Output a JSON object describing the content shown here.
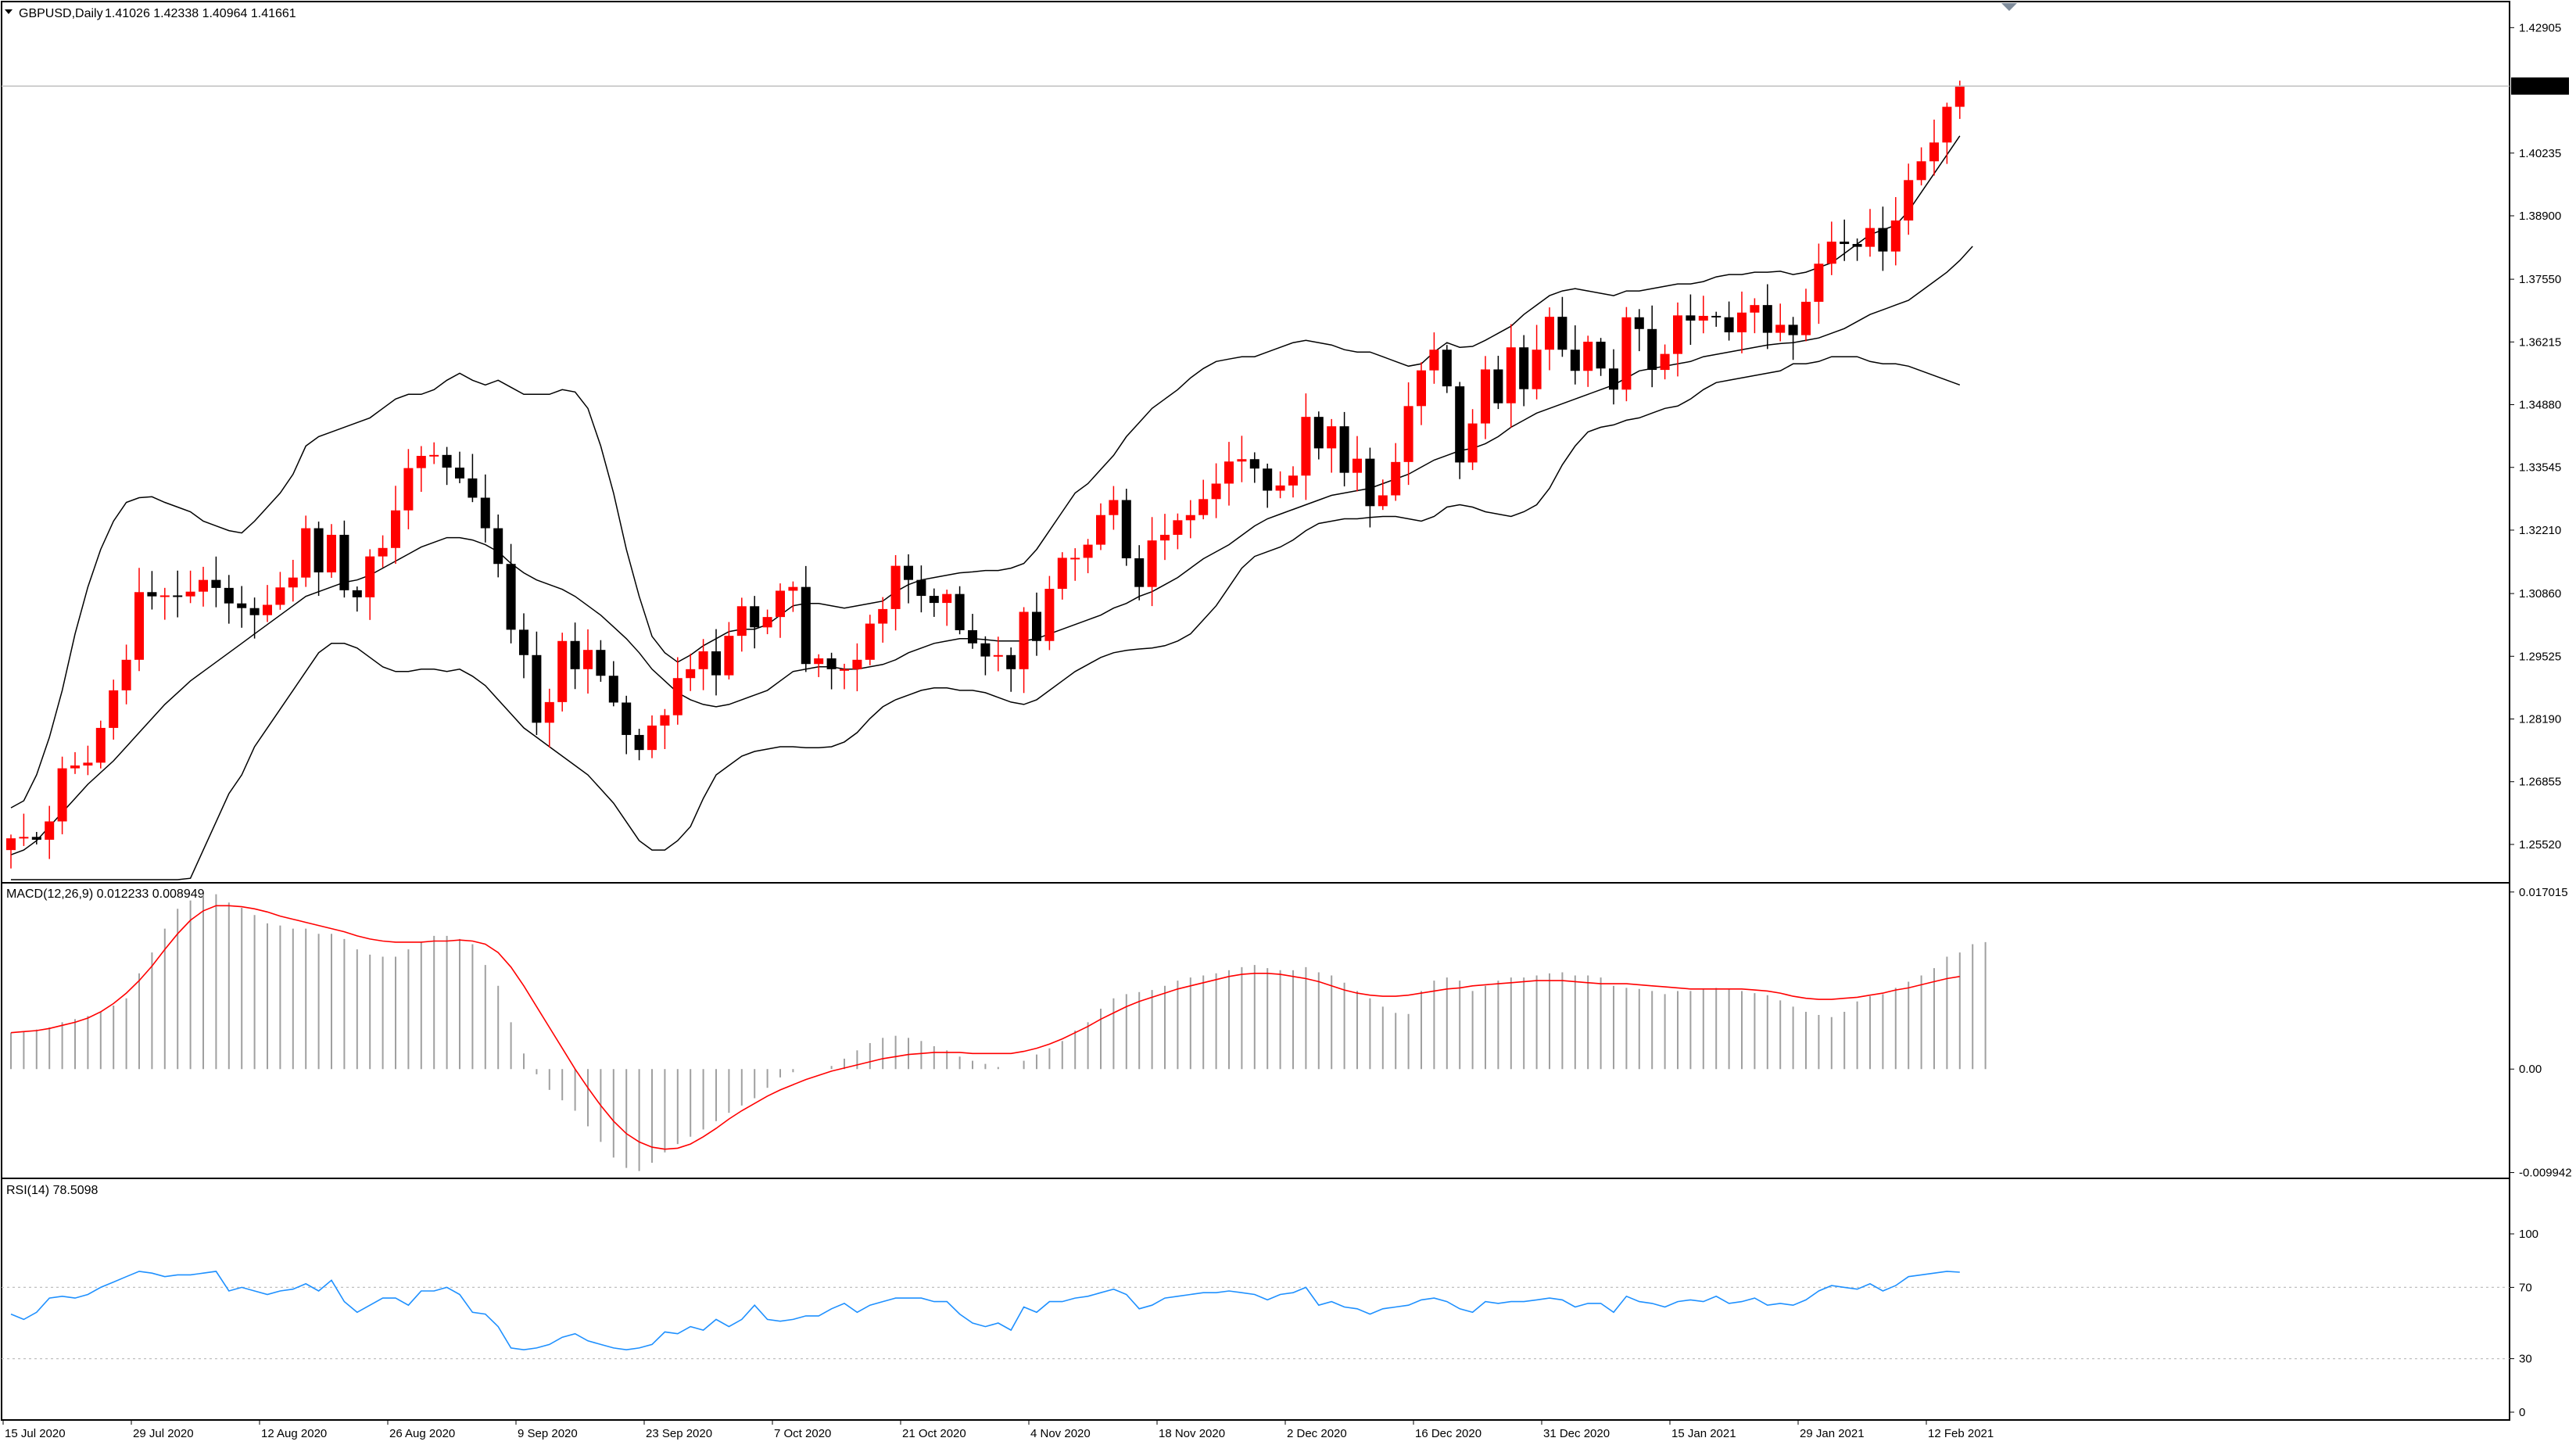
{
  "symbol_caption": "GBPUSD,Daily",
  "ohlc_caption": "1.41026 1.42338 1.40964 1.41661",
  "macd_caption": "MACD(12,26,9) 0.012233 0.008949",
  "rsi_caption": "RSI(14) 78.5098",
  "current_price_label": "1.41661",
  "colors": {
    "bull": "#ff0000",
    "bear": "#000000",
    "grid": "#c0c0c0",
    "macd_signal": "#ff0000",
    "macd_hist": "#a0a0a0",
    "rsi": "#1e90ff",
    "bands": "#000000"
  },
  "icons": {
    "collapse": "triangle-down-icon",
    "shift": "chart-shift-icon"
  },
  "chart_data": [
    {
      "type": "candlestick",
      "y_ticks": [
        "1.42905",
        "1.40235",
        "1.38900",
        "1.37550",
        "1.36215",
        "1.34880",
        "1.33545",
        "1.32210",
        "1.30860",
        "1.29525",
        "1.28190",
        "1.26855",
        "1.25520"
      ],
      "y_range": [
        1.2477,
        1.4336
      ],
      "x_tick_labels": [
        "15 Jul 2020",
        "29 Jul 2020",
        "12 Aug 2020",
        "26 Aug 2020",
        "9 Sep 2020",
        "23 Sep 2020",
        "7 Oct 2020",
        "21 Oct 2020",
        "4 Nov 2020",
        "18 Nov 2020",
        "2 Dec 2020",
        "16 Dec 2020",
        "31 Dec 2020",
        "15 Jan 2021",
        "29 Jan 2021",
        "12 Feb 2021"
      ],
      "x_tick_index": [
        0,
        10,
        20,
        30,
        40,
        50,
        60,
        70,
        80,
        90,
        100,
        110,
        120,
        130,
        140,
        150
      ],
      "current_price": 1.41661,
      "close": [
        1.2565,
        1.2568,
        1.2562,
        1.2601,
        1.2714,
        1.272,
        1.2726,
        1.28,
        1.288,
        1.2945,
        1.3089,
        1.308,
        1.3082,
        1.308,
        1.309,
        1.3115,
        1.3098,
        1.3065,
        1.3055,
        1.304,
        1.3062,
        1.3099,
        1.312,
        1.3225,
        1.3131,
        1.3211,
        1.3093,
        1.3078,
        1.3165,
        1.3183,
        1.3263,
        1.3353,
        1.3379,
        1.3381,
        1.3354,
        1.3331,
        1.329,
        1.3225,
        1.3149,
        1.3009,
        1.2955,
        1.2811,
        1.2855,
        1.2985,
        1.2925,
        1.2966,
        1.2911,
        1.2854,
        1.2785,
        1.2753,
        1.2805,
        1.2827,
        1.2906,
        1.2925,
        1.2963,
        1.2912,
        1.2996,
        1.3059,
        1.3014,
        1.3036,
        1.3092,
        1.31,
        1.2936,
        1.2948,
        1.2925,
        1.2925,
        1.2945,
        1.3022,
        1.3053,
        1.3145,
        1.3115,
        1.3081,
        1.3066,
        1.3085,
        1.3008,
        1.298,
        1.2952,
        1.2955,
        1.2925,
        1.3047,
        1.2985,
        1.3096,
        1.3162,
        1.3162,
        1.319,
        1.3253,
        1.3285,
        1.3161,
        1.31,
        1.3199,
        1.3211,
        1.3242,
        1.3253,
        1.3287,
        1.332,
        1.3367,
        1.3372,
        1.3352,
        1.3305,
        1.3316,
        1.3337,
        1.3462,
        1.3395,
        1.3442,
        1.3343,
        1.3373,
        1.3272,
        1.3295,
        1.3366,
        1.3485,
        1.3561,
        1.3605,
        1.3527,
        1.3365,
        1.3448,
        1.3563,
        1.3491,
        1.361,
        1.3521,
        1.3605,
        1.3675,
        1.3605,
        1.356,
        1.3622,
        1.3565,
        1.352,
        1.3674,
        1.3649,
        1.3562,
        1.3596,
        1.3678,
        1.3667,
        1.3677,
        1.3674,
        1.3642,
        1.3684,
        1.37,
        1.3641,
        1.3658,
        1.3636,
        1.3707,
        1.3788,
        1.3835,
        1.383,
        1.3824,
        1.3864,
        1.3814,
        1.388,
        1.3966,
        1.4006,
        1.4046,
        1.4122,
        1.4166
      ],
      "bb_upper": [
        1.263,
        1.2645,
        1.27,
        1.278,
        1.288,
        1.3,
        1.31,
        1.318,
        1.324,
        1.328,
        1.329,
        1.3292,
        1.328,
        1.327,
        1.326,
        1.324,
        1.323,
        1.322,
        1.3215,
        1.324,
        1.327,
        1.33,
        1.334,
        1.34,
        1.342,
        1.343,
        1.344,
        1.345,
        1.346,
        1.348,
        1.35,
        1.351,
        1.351,
        1.352,
        1.354,
        1.3555,
        1.354,
        1.353,
        1.354,
        1.3525,
        1.351,
        1.351,
        1.351,
        1.352,
        1.3515,
        1.348,
        1.34,
        1.33,
        1.318,
        1.308,
        1.2995,
        1.296,
        1.294,
        1.2955,
        1.2975,
        1.299,
        1.3005,
        1.301,
        1.301,
        1.302,
        1.304,
        1.306,
        1.3065,
        1.3065,
        1.306,
        1.3055,
        1.306,
        1.3065,
        1.307,
        1.309,
        1.3105,
        1.3115,
        1.312,
        1.3125,
        1.313,
        1.3132,
        1.3135,
        1.3135,
        1.314,
        1.315,
        1.318,
        1.322,
        1.326,
        1.33,
        1.332,
        1.335,
        1.338,
        1.342,
        1.345,
        1.348,
        1.35,
        1.352,
        1.3545,
        1.3565,
        1.358,
        1.3585,
        1.359,
        1.359,
        1.36,
        1.361,
        1.362,
        1.3625,
        1.362,
        1.3615,
        1.3605,
        1.36,
        1.36,
        1.359,
        1.358,
        1.357,
        1.3575,
        1.36,
        1.362,
        1.361,
        1.3612,
        1.3625,
        1.364,
        1.3655,
        1.368,
        1.37,
        1.372,
        1.373,
        1.3735,
        1.373,
        1.3725,
        1.372,
        1.373,
        1.373,
        1.3735,
        1.374,
        1.3745,
        1.3745,
        1.375,
        1.376,
        1.3765,
        1.3765,
        1.377,
        1.377,
        1.3772,
        1.3765,
        1.377,
        1.378,
        1.379,
        1.381,
        1.383,
        1.385,
        1.386,
        1.387,
        1.39,
        1.394,
        1.398,
        1.402,
        1.406
      ],
      "bb_middle": [
        1.253,
        1.254,
        1.256,
        1.259,
        1.262,
        1.265,
        1.268,
        1.2705,
        1.273,
        1.276,
        1.279,
        1.282,
        1.285,
        1.2875,
        1.29,
        1.292,
        1.294,
        1.296,
        1.298,
        1.3,
        1.302,
        1.304,
        1.306,
        1.308,
        1.309,
        1.31,
        1.311,
        1.3115,
        1.3125,
        1.314,
        1.3155,
        1.317,
        1.3185,
        1.3195,
        1.3205,
        1.3205,
        1.32,
        1.319,
        1.3175,
        1.315,
        1.313,
        1.3115,
        1.3105,
        1.3095,
        1.308,
        1.306,
        1.304,
        1.3015,
        1.299,
        1.296,
        1.2925,
        1.29,
        1.2875,
        1.286,
        1.285,
        1.2845,
        1.285,
        1.286,
        1.287,
        1.288,
        1.29,
        1.292,
        1.2925,
        1.293,
        1.293,
        1.2925,
        1.2925,
        1.293,
        1.2935,
        1.2945,
        1.296,
        1.297,
        1.298,
        1.2985,
        1.299,
        1.299,
        1.2988,
        1.2985,
        1.2985,
        1.2985,
        1.299,
        1.3,
        1.301,
        1.302,
        1.303,
        1.304,
        1.3055,
        1.3065,
        1.308,
        1.309,
        1.3105,
        1.312,
        1.314,
        1.316,
        1.3175,
        1.319,
        1.321,
        1.323,
        1.3245,
        1.3255,
        1.3265,
        1.3275,
        1.3285,
        1.3295,
        1.33,
        1.3305,
        1.331,
        1.332,
        1.333,
        1.334,
        1.3355,
        1.337,
        1.338,
        1.339,
        1.3395,
        1.3405,
        1.342,
        1.344,
        1.3455,
        1.347,
        1.348,
        1.349,
        1.35,
        1.351,
        1.352,
        1.353,
        1.3545,
        1.356,
        1.3565,
        1.357,
        1.3575,
        1.358,
        1.359,
        1.3595,
        1.36,
        1.3605,
        1.361,
        1.3615,
        1.3618,
        1.362,
        1.3625,
        1.363,
        1.364,
        1.365,
        1.3665,
        1.368,
        1.369,
        1.37,
        1.371,
        1.373,
        1.375,
        1.377,
        1.3795,
        1.3825
      ],
      "bb_lower": [
        1.245,
        1.244,
        1.242,
        1.24,
        1.237,
        1.234,
        1.23,
        1.226,
        1.222,
        1.22,
        1.224,
        1.23,
        1.236,
        1.242,
        1.248,
        1.254,
        1.26,
        1.266,
        1.27,
        1.276,
        1.28,
        1.284,
        1.288,
        1.292,
        1.296,
        1.298,
        1.298,
        1.297,
        1.295,
        1.293,
        1.292,
        1.292,
        1.2925,
        1.2925,
        1.292,
        1.2925,
        1.291,
        1.289,
        1.286,
        1.283,
        1.28,
        1.278,
        1.276,
        1.274,
        1.272,
        1.27,
        1.267,
        1.264,
        1.26,
        1.256,
        1.254,
        1.254,
        1.256,
        1.259,
        1.265,
        1.27,
        1.272,
        1.274,
        1.275,
        1.2755,
        1.276,
        1.276,
        1.2758,
        1.2758,
        1.276,
        1.277,
        1.279,
        1.282,
        1.2845,
        1.286,
        1.287,
        1.288,
        1.2885,
        1.2885,
        1.288,
        1.288,
        1.2875,
        1.2865,
        1.2855,
        1.285,
        1.286,
        1.288,
        1.29,
        1.292,
        1.2935,
        1.295,
        1.296,
        1.2965,
        1.2968,
        1.297,
        1.2975,
        1.2985,
        1.3,
        1.303,
        1.306,
        1.31,
        1.314,
        1.3165,
        1.3175,
        1.3185,
        1.32,
        1.322,
        1.3235,
        1.324,
        1.3245,
        1.3245,
        1.3248,
        1.325,
        1.325,
        1.3245,
        1.324,
        1.325,
        1.327,
        1.3275,
        1.327,
        1.326,
        1.3255,
        1.325,
        1.326,
        1.3275,
        1.331,
        1.336,
        1.34,
        1.343,
        1.344,
        1.3445,
        1.3455,
        1.346,
        1.347,
        1.348,
        1.3485,
        1.35,
        1.352,
        1.3535,
        1.354,
        1.3545,
        1.355,
        1.3555,
        1.356,
        1.3575,
        1.3575,
        1.358,
        1.359,
        1.359,
        1.359,
        1.358,
        1.3575,
        1.3575,
        1.357,
        1.356,
        1.355,
        1.354,
        1.353
      ]
    },
    {
      "type": "bar",
      "title": "MACD(12,26,9) 0.012233 0.008949",
      "y_ticks": [
        "0.017015",
        "0.00",
        "-0.009942"
      ],
      "y_range": [
        -0.0102,
        0.0176
      ],
      "histogram": [
        0.0035,
        0.0036,
        0.0038,
        0.004,
        0.0045,
        0.0048,
        0.0051,
        0.0055,
        0.0061,
        0.0068,
        0.0092,
        0.0112,
        0.0135,
        0.0154,
        0.0162,
        0.0168,
        0.0168,
        0.016,
        0.0155,
        0.0148,
        0.014,
        0.0138,
        0.0135,
        0.0135,
        0.013,
        0.013,
        0.0125,
        0.0115,
        0.011,
        0.0108,
        0.0108,
        0.0115,
        0.0122,
        0.0128,
        0.0128,
        0.0125,
        0.012,
        0.01,
        0.008,
        0.0045,
        0.0015,
        -0.0005,
        -0.002,
        -0.003,
        -0.004,
        -0.0055,
        -0.007,
        -0.0085,
        -0.0095,
        -0.0098,
        -0.009,
        -0.008,
        -0.0072,
        -0.0065,
        -0.0058,
        -0.005,
        -0.0042,
        -0.0035,
        -0.0028,
        -0.0018,
        -0.0008,
        -0.0003,
        0.0,
        0.0,
        0.0003,
        0.001,
        0.0018,
        0.0025,
        0.003,
        0.0032,
        0.003,
        0.0027,
        0.0022,
        0.0018,
        0.0012,
        0.0008,
        0.0005,
        0.0002,
        0.0,
        0.0008,
        0.0014,
        0.002,
        0.0027,
        0.0037,
        0.0045,
        0.0058,
        0.0068,
        0.0072,
        0.0074,
        0.0076,
        0.008,
        0.0085,
        0.0088,
        0.009,
        0.0092,
        0.0095,
        0.0098,
        0.01,
        0.0097,
        0.0095,
        0.0095,
        0.0098,
        0.0093,
        0.009,
        0.0083,
        0.0075,
        0.0068,
        0.006,
        0.0054,
        0.0053,
        0.0075,
        0.0085,
        0.0088,
        0.0085,
        0.0075,
        0.008,
        0.0085,
        0.0088,
        0.0088,
        0.009,
        0.0092,
        0.0093,
        0.009,
        0.009,
        0.0088,
        0.008,
        0.0078,
        0.0077,
        0.0075,
        0.0072,
        0.0075,
        0.0075,
        0.0077,
        0.0078,
        0.0077,
        0.0075,
        0.0073,
        0.0071,
        0.0066,
        0.006,
        0.0055,
        0.0052,
        0.005,
        0.0055,
        0.0065,
        0.007,
        0.0072,
        0.0078,
        0.0084,
        0.009,
        0.0097,
        0.0108,
        0.0112,
        0.012,
        0.0122
      ],
      "signal": [
        0.0035,
        0.0036,
        0.0037,
        0.0039,
        0.0042,
        0.0045,
        0.0049,
        0.0055,
        0.0063,
        0.0073,
        0.0085,
        0.0099,
        0.0115,
        0.013,
        0.0143,
        0.0152,
        0.0157,
        0.0157,
        0.0156,
        0.0154,
        0.0151,
        0.0147,
        0.0144,
        0.0141,
        0.0138,
        0.0135,
        0.0132,
        0.0128,
        0.0125,
        0.0123,
        0.0122,
        0.0122,
        0.0122,
        0.0123,
        0.0123,
        0.0124,
        0.0123,
        0.012,
        0.0112,
        0.0098,
        0.008,
        0.006,
        0.004,
        0.002,
        0.0,
        -0.0018,
        -0.0035,
        -0.005,
        -0.0062,
        -0.007,
        -0.0075,
        -0.0077,
        -0.0076,
        -0.0072,
        -0.0065,
        -0.0057,
        -0.0048,
        -0.004,
        -0.0033,
        -0.0026,
        -0.002,
        -0.0015,
        -0.001,
        -0.0006,
        -0.0002,
        0.0001,
        0.0004,
        0.0007,
        0.001,
        0.0012,
        0.0014,
        0.0015,
        0.0016,
        0.0016,
        0.0016,
        0.0015,
        0.0015,
        0.0015,
        0.0015,
        0.0017,
        0.002,
        0.0024,
        0.0029,
        0.0035,
        0.0041,
        0.0048,
        0.0054,
        0.006,
        0.0065,
        0.0069,
        0.0073,
        0.0077,
        0.008,
        0.0083,
        0.0086,
        0.0089,
        0.0091,
        0.0092,
        0.0092,
        0.0091,
        0.0089,
        0.0087,
        0.0084,
        0.008,
        0.0076,
        0.0073,
        0.0071,
        0.007,
        0.007,
        0.0071,
        0.0073,
        0.0075,
        0.0077,
        0.0078,
        0.008,
        0.0081,
        0.0082,
        0.0083,
        0.0084,
        0.0085,
        0.0085,
        0.0085,
        0.0084,
        0.0083,
        0.0082,
        0.0082,
        0.0082,
        0.0081,
        0.008,
        0.0079,
        0.0078,
        0.0077,
        0.0077,
        0.0077,
        0.0077,
        0.0077,
        0.0076,
        0.0075,
        0.0073,
        0.007,
        0.0068,
        0.0067,
        0.0067,
        0.0068,
        0.0069,
        0.0071,
        0.0073,
        0.0076,
        0.0078,
        0.0081,
        0.0084,
        0.0087,
        0.0089
      ]
    },
    {
      "type": "line",
      "title": "RSI(14) 78.5098",
      "y_ticks": [
        "100",
        "70",
        "30",
        "0"
      ],
      "y_range": [
        0,
        100
      ],
      "levels": [
        70,
        30
      ],
      "values": [
        55,
        52,
        56,
        64,
        65,
        64,
        66,
        70,
        73,
        76,
        79,
        78,
        76,
        77,
        77,
        78,
        79,
        68,
        70,
        68,
        66,
        68,
        69,
        72,
        68,
        74,
        62,
        56,
        60,
        64,
        64,
        60,
        68,
        68,
        70,
        66,
        56,
        55,
        48,
        36,
        35,
        36,
        38,
        42,
        44,
        40,
        38,
        36,
        35,
        36,
        38,
        45,
        44,
        48,
        46,
        52,
        48,
        52,
        60,
        52,
        51,
        52,
        54,
        54,
        58,
        61,
        56,
        60,
        62,
        64,
        64,
        64,
        62,
        62,
        55,
        50,
        48,
        50,
        46,
        59,
        56,
        62,
        62,
        64,
        65,
        67,
        69,
        66,
        58,
        60,
        64,
        65,
        66,
        67,
        67,
        68,
        67,
        66,
        63,
        66,
        67,
        70,
        60,
        62,
        59,
        58,
        55,
        58,
        59,
        60,
        63,
        64,
        62,
        58,
        56,
        62,
        61,
        62,
        62,
        63,
        64,
        63,
        59,
        61,
        61,
        56,
        65,
        62,
        61,
        59,
        62,
        63,
        62,
        65,
        61,
        62,
        64,
        60,
        61,
        60,
        63,
        68,
        71,
        70,
        69,
        72,
        68,
        71,
        76,
        77,
        78,
        79,
        78.5
      ]
    }
  ]
}
